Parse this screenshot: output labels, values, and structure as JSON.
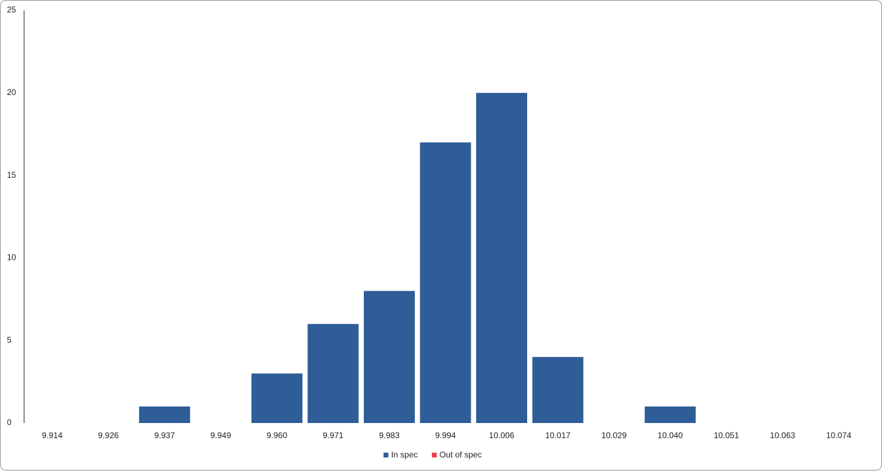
{
  "chart_data": {
    "type": "bar",
    "stacked": true,
    "categories": [
      "9.914",
      "9.926",
      "9.937",
      "9.949",
      "9.960",
      "9.971",
      "9.983",
      "9.994",
      "10.006",
      "10.017",
      "10.029",
      "10.040",
      "10.051",
      "10.063",
      "10.074"
    ],
    "series": [
      {
        "name": "In spec",
        "color": "#2e5d97",
        "values": [
          0,
          0,
          1,
          0,
          3,
          6,
          8,
          17,
          20,
          4,
          0,
          1,
          0,
          0,
          0
        ]
      },
      {
        "name": "Out of spec",
        "color": "#e8434a",
        "values": [
          0,
          0,
          0,
          0,
          0,
          0,
          0,
          0,
          0,
          0,
          0,
          0,
          0,
          0,
          0
        ]
      }
    ],
    "ylim": [
      0,
      25
    ],
    "yticks": [
      0,
      5,
      10,
      15,
      20,
      25
    ],
    "grid": false,
    "legend": "bottom"
  }
}
